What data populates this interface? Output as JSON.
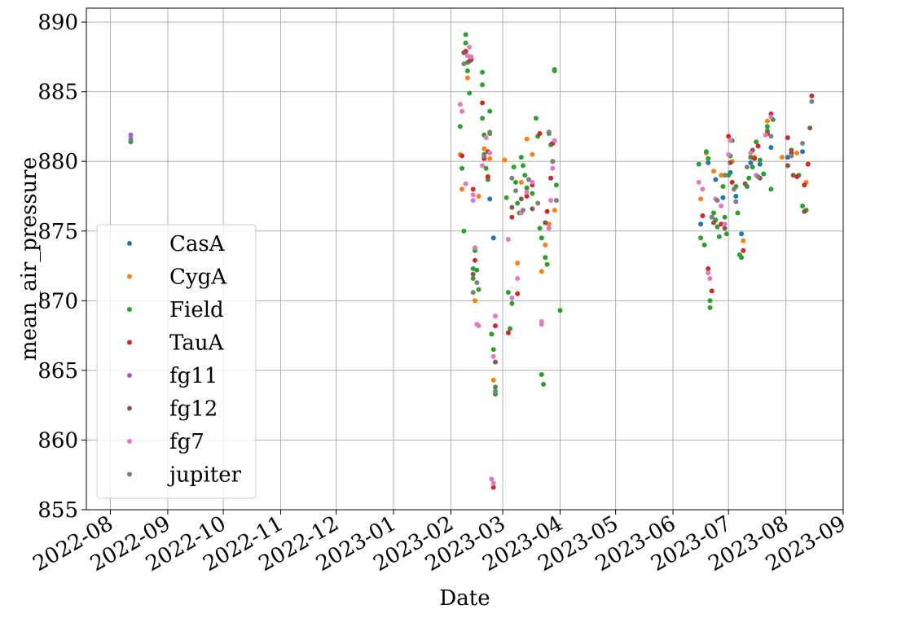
{
  "chart_data": {
    "type": "scatter",
    "title": "",
    "xlabel": "Date",
    "ylabel": "mean_air_pressure",
    "ylim": [
      855,
      891
    ],
    "xlim": [
      "2022-07-19",
      "2023-09-01"
    ],
    "grid": true,
    "legend_position": "center-left",
    "x_ticks": [
      "2022-08-01",
      "2022-09-01",
      "2022-10-01",
      "2022-11-01",
      "2022-12-01",
      "2023-01-01",
      "2023-02-01",
      "2023-03-01",
      "2023-04-01",
      "2023-05-01",
      "2023-06-01",
      "2023-07-01",
      "2023-08-01",
      "2023-09-01"
    ],
    "x_tick_labels": [
      "2022-08",
      "2022-09",
      "2022-10",
      "2022-11",
      "2022-12",
      "2023-01",
      "2023-02",
      "2023-03",
      "2023-04",
      "2023-05",
      "2023-06",
      "2023-07",
      "2023-08",
      "2023-09"
    ],
    "y_ticks": [
      855,
      860,
      865,
      870,
      875,
      880,
      885,
      890
    ],
    "series": [
      {
        "name": "CasA",
        "color": "#1f77b4",
        "points": [
          [
            "2023-06-16",
            875.5
          ],
          [
            "2023-06-20",
            879.9
          ],
          [
            "2023-06-24",
            878.7
          ],
          [
            "2023-06-28",
            877.4
          ],
          [
            "2023-07-02",
            879.2
          ],
          [
            "2023-07-05",
            877.5
          ],
          [
            "2023-07-08",
            874.8
          ],
          [
            "2023-07-13",
            879.9
          ],
          [
            "2023-07-18",
            879.8
          ],
          [
            "2023-07-24",
            881.0
          ],
          [
            "2023-08-02",
            880.3
          ],
          [
            "2023-08-10",
            880.7
          ],
          [
            "2023-02-22",
            877.3
          ],
          [
            "2023-02-24",
            874.5
          ]
        ]
      },
      {
        "name": "CygA",
        "color": "#ff7f0e",
        "points": [
          [
            "2023-02-06",
            880.5
          ],
          [
            "2023-02-07",
            878.0
          ],
          [
            "2023-02-10",
            886.0
          ],
          [
            "2023-02-12",
            887.4
          ],
          [
            "2023-02-14",
            870.0
          ],
          [
            "2023-02-16",
            877.5
          ],
          [
            "2023-02-19",
            880.9
          ],
          [
            "2023-02-22",
            880.2
          ],
          [
            "2023-02-24",
            864.3
          ],
          [
            "2023-03-02",
            880.1
          ],
          [
            "2023-03-09",
            872.7
          ],
          [
            "2023-03-11",
            878.5
          ],
          [
            "2023-03-14",
            881.6
          ],
          [
            "2023-03-17",
            880.5
          ],
          [
            "2023-03-22",
            872.1
          ],
          [
            "2023-03-24",
            874.0
          ],
          [
            "2023-03-26",
            875.5
          ],
          [
            "2023-03-29",
            876.5
          ],
          [
            "2023-06-16",
            877.3
          ],
          [
            "2023-06-19",
            880.6
          ],
          [
            "2023-06-23",
            879.3
          ],
          [
            "2023-06-27",
            879.0
          ],
          [
            "2023-07-03",
            880.0
          ],
          [
            "2023-07-09",
            874.3
          ],
          [
            "2023-07-15",
            880.3
          ],
          [
            "2023-07-22",
            882.9
          ],
          [
            "2023-07-30",
            880.3
          ],
          [
            "2023-08-07",
            880.6
          ],
          [
            "2023-08-12",
            878.5
          ]
        ]
      },
      {
        "name": "Field",
        "color": "#2ca02c",
        "points": [
          [
            "2022-08-12",
            881.4
          ],
          [
            "2023-02-06",
            882.5
          ],
          [
            "2023-02-07",
            879.5
          ],
          [
            "2023-02-08",
            875.0
          ],
          [
            "2023-02-09",
            889.1
          ],
          [
            "2023-02-09",
            888.5
          ],
          [
            "2023-02-10",
            887.1
          ],
          [
            "2023-02-10",
            886.5
          ],
          [
            "2023-02-11",
            884.9
          ],
          [
            "2023-02-13",
            872.3
          ],
          [
            "2023-02-13",
            871.6
          ],
          [
            "2023-02-14",
            873.6
          ],
          [
            "2023-02-15",
            872.2
          ],
          [
            "2023-02-16",
            870.8
          ],
          [
            "2023-02-18",
            886.4
          ],
          [
            "2023-02-18",
            885.5
          ],
          [
            "2023-02-18",
            883.1
          ],
          [
            "2023-02-19",
            881.9
          ],
          [
            "2023-02-19",
            880.5
          ],
          [
            "2023-02-20",
            879.5
          ],
          [
            "2023-02-21",
            878.7
          ],
          [
            "2023-02-22",
            883.6
          ],
          [
            "2023-02-22",
            882.0
          ],
          [
            "2023-02-23",
            867.6
          ],
          [
            "2023-02-24",
            866.5
          ],
          [
            "2023-02-25",
            863.8
          ],
          [
            "2023-02-25",
            863.3
          ],
          [
            "2023-03-03",
            877.4
          ],
          [
            "2023-03-04",
            870.6
          ],
          [
            "2023-03-05",
            868.0
          ],
          [
            "2023-03-06",
            869.8
          ],
          [
            "2023-03-07",
            879.6
          ],
          [
            "2023-03-08",
            878.5
          ],
          [
            "2023-03-09",
            877.0
          ],
          [
            "2023-03-10",
            876.3
          ],
          [
            "2023-03-11",
            880.3
          ],
          [
            "2023-03-12",
            879.7
          ],
          [
            "2023-03-13",
            879.0
          ],
          [
            "2023-03-14",
            878.1
          ],
          [
            "2023-03-17",
            877.7
          ],
          [
            "2023-03-19",
            883.1
          ],
          [
            "2023-03-20",
            881.8
          ],
          [
            "2023-03-21",
            875.2
          ],
          [
            "2023-03-22",
            874.5
          ],
          [
            "2023-03-22",
            864.7
          ],
          [
            "2023-03-23",
            864.0
          ],
          [
            "2023-03-24",
            873.1
          ],
          [
            "2023-03-25",
            872.6
          ],
          [
            "2023-03-26",
            882.0
          ],
          [
            "2023-03-27",
            881.2
          ],
          [
            "2023-03-28",
            880.0
          ],
          [
            "2023-03-29",
            886.6
          ],
          [
            "2023-03-29",
            886.5
          ],
          [
            "2023-03-30",
            878.3
          ],
          [
            "2023-04-01",
            869.3
          ],
          [
            "2023-06-15",
            879.8
          ],
          [
            "2023-06-16",
            874.5
          ],
          [
            "2023-06-18",
            874.0
          ],
          [
            "2023-06-19",
            880.7
          ],
          [
            "2023-06-20",
            880.2
          ],
          [
            "2023-06-21",
            870.0
          ],
          [
            "2023-06-21",
            869.5
          ],
          [
            "2023-06-23",
            876.3
          ],
          [
            "2023-06-24",
            875.8
          ],
          [
            "2023-06-25",
            875.3
          ],
          [
            "2023-06-26",
            874.6
          ],
          [
            "2023-06-28",
            878.2
          ],
          [
            "2023-06-29",
            876.0
          ],
          [
            "2023-06-30",
            874.8
          ],
          [
            "2023-07-01",
            879.0
          ],
          [
            "2023-07-02",
            880.4
          ],
          [
            "2023-07-03",
            881.5
          ],
          [
            "2023-07-05",
            878.2
          ],
          [
            "2023-07-06",
            876.3
          ],
          [
            "2023-07-07",
            873.3
          ],
          [
            "2023-07-08",
            873.1
          ],
          [
            "2023-07-11",
            878.2
          ],
          [
            "2023-07-12",
            878.8
          ],
          [
            "2023-07-13",
            880.3
          ],
          [
            "2023-07-14",
            879.6
          ],
          [
            "2023-07-16",
            881.4
          ],
          [
            "2023-07-18",
            880.1
          ],
          [
            "2023-07-20",
            879.1
          ],
          [
            "2023-07-22",
            882.5
          ],
          [
            "2023-07-22",
            882.2
          ],
          [
            "2023-07-24",
            878.0
          ],
          [
            "2023-07-25",
            883.0
          ],
          [
            "2023-08-08",
            879.0
          ],
          [
            "2023-08-10",
            876.8
          ],
          [
            "2023-08-12",
            876.5
          ]
        ]
      },
      {
        "name": "TauA",
        "color": "#d62728",
        "points": [
          [
            "2023-02-07",
            880.4
          ],
          [
            "2023-02-09",
            887.9
          ],
          [
            "2023-02-12",
            887.3
          ],
          [
            "2023-02-13",
            878.0
          ],
          [
            "2023-02-14",
            872.9
          ],
          [
            "2023-02-18",
            884.2
          ],
          [
            "2023-02-19",
            880.2
          ],
          [
            "2023-02-21",
            878.9
          ],
          [
            "2023-02-24",
            856.6
          ],
          [
            "2023-02-25",
            868.2
          ],
          [
            "2023-03-04",
            867.7
          ],
          [
            "2023-03-06",
            876.0
          ],
          [
            "2023-03-09",
            870.5
          ],
          [
            "2023-03-14",
            877.5
          ],
          [
            "2023-03-17",
            878.3
          ],
          [
            "2023-03-21",
            882.0
          ],
          [
            "2023-03-25",
            876.4
          ],
          [
            "2023-03-27",
            878.8
          ],
          [
            "2023-03-28",
            881.3
          ],
          [
            "2023-06-17",
            876.1
          ],
          [
            "2023-06-20",
            872.3
          ],
          [
            "2023-06-22",
            870.7
          ],
          [
            "2023-06-27",
            875.5
          ],
          [
            "2023-07-01",
            881.8
          ],
          [
            "2023-07-03",
            878.5
          ],
          [
            "2023-07-09",
            873.6
          ],
          [
            "2023-07-15",
            880.2
          ],
          [
            "2023-07-17",
            881.1
          ],
          [
            "2023-07-22",
            882.0
          ],
          [
            "2023-07-24",
            883.4
          ],
          [
            "2023-08-02",
            881.7
          ],
          [
            "2023-08-04",
            880.6
          ],
          [
            "2023-08-07",
            878.9
          ],
          [
            "2023-08-11",
            878.3
          ],
          [
            "2023-08-13",
            879.8
          ],
          [
            "2023-08-15",
            884.7
          ]
        ]
      },
      {
        "name": "fg11",
        "color": "#9467bd",
        "points": [
          [
            "2022-08-12",
            881.9
          ],
          [
            "2022-08-12",
            881.6
          ]
        ]
      },
      {
        "name": "fg12",
        "color": "#8c564b",
        "points": [
          [
            "2023-02-08",
            887.8
          ],
          [
            "2023-02-11",
            887.2
          ],
          [
            "2023-02-13",
            871.9
          ],
          [
            "2023-02-21",
            880.7
          ],
          [
            "2023-02-25",
            865.6
          ],
          [
            "2023-03-06",
            876.7
          ],
          [
            "2023-03-11",
            877.3
          ],
          [
            "2023-03-17",
            876.6
          ],
          [
            "2023-03-24",
            875.6
          ],
          [
            "2023-06-23",
            875.6
          ],
          [
            "2023-06-29",
            875.2
          ],
          [
            "2023-07-02",
            879.9
          ],
          [
            "2023-07-10",
            878.4
          ],
          [
            "2023-07-14",
            880.8
          ],
          [
            "2023-07-18",
            878.8
          ],
          [
            "2023-08-02",
            879.7
          ],
          [
            "2023-08-04",
            880.8
          ],
          [
            "2023-08-05",
            879.0
          ],
          [
            "2023-08-11",
            876.4
          ],
          [
            "2023-08-14",
            882.4
          ]
        ]
      },
      {
        "name": "fg7",
        "color": "#e377c2",
        "points": [
          [
            "2023-02-06",
            884.1
          ],
          [
            "2023-02-07",
            883.6
          ],
          [
            "2023-02-09",
            878.4
          ],
          [
            "2023-02-10",
            887.6
          ],
          [
            "2023-02-11",
            888.2
          ],
          [
            "2023-02-12",
            887.5
          ],
          [
            "2023-02-13",
            877.2
          ],
          [
            "2023-02-13",
            877.6
          ],
          [
            "2023-02-14",
            873.8
          ],
          [
            "2023-02-15",
            868.3
          ],
          [
            "2023-02-16",
            868.2
          ],
          [
            "2023-02-18",
            879.7
          ],
          [
            "2023-02-20",
            881.7
          ],
          [
            "2023-02-22",
            880.6
          ],
          [
            "2023-02-23",
            857.2
          ],
          [
            "2023-02-24",
            856.9
          ],
          [
            "2023-02-24",
            866.0
          ],
          [
            "2023-02-25",
            868.9
          ],
          [
            "2023-03-04",
            874.4
          ],
          [
            "2023-03-06",
            870.2
          ],
          [
            "2023-03-09",
            871.6
          ],
          [
            "2023-03-11",
            876.3
          ],
          [
            "2023-03-14",
            877.8
          ],
          [
            "2023-03-17",
            878.5
          ],
          [
            "2023-03-22",
            868.3
          ],
          [
            "2023-03-22",
            868.5
          ],
          [
            "2023-03-26",
            875.2
          ],
          [
            "2023-03-27",
            877.2
          ],
          [
            "2023-03-28",
            879.5
          ],
          [
            "2023-03-29",
            881.5
          ],
          [
            "2023-06-15",
            878.5
          ],
          [
            "2023-06-17",
            878.0
          ],
          [
            "2023-06-20",
            872.0
          ],
          [
            "2023-06-21",
            871.6
          ],
          [
            "2023-06-24",
            877.3
          ],
          [
            "2023-06-27",
            876.8
          ],
          [
            "2023-06-29",
            875.5
          ],
          [
            "2023-07-01",
            880.5
          ],
          [
            "2023-07-02",
            881.5
          ],
          [
            "2023-07-13",
            880.6
          ],
          [
            "2023-07-16",
            879.0
          ],
          [
            "2023-07-21",
            881.9
          ],
          [
            "2023-07-24",
            883.2
          ]
        ]
      },
      {
        "name": "jupiter",
        "color": "#7f7f7f",
        "points": [
          [
            "2023-02-08",
            887.0
          ],
          [
            "2023-02-13",
            870.6
          ],
          [
            "2023-02-15",
            871.3
          ],
          [
            "2023-02-19",
            880.4
          ],
          [
            "2023-02-22",
            882.1
          ],
          [
            "2023-02-25",
            863.5
          ],
          [
            "2023-03-06",
            878.8
          ],
          [
            "2023-03-08",
            877.9
          ],
          [
            "2023-03-12",
            876.5
          ],
          [
            "2023-03-15",
            878.7
          ],
          [
            "2023-03-20",
            877.0
          ],
          [
            "2023-03-26",
            882.1
          ],
          [
            "2023-03-28",
            880.0
          ],
          [
            "2023-03-30",
            877.2
          ],
          [
            "2023-06-22",
            876.0
          ],
          [
            "2023-06-25",
            877.2
          ],
          [
            "2023-06-29",
            879.0
          ],
          [
            "2023-07-04",
            878.0
          ],
          [
            "2023-07-05",
            877.1
          ],
          [
            "2023-07-11",
            879.6
          ],
          [
            "2023-07-17",
            878.9
          ],
          [
            "2023-07-24",
            881.8
          ],
          [
            "2023-08-04",
            880.4
          ],
          [
            "2023-08-10",
            881.3
          ],
          [
            "2023-08-15",
            884.3
          ]
        ]
      }
    ]
  }
}
